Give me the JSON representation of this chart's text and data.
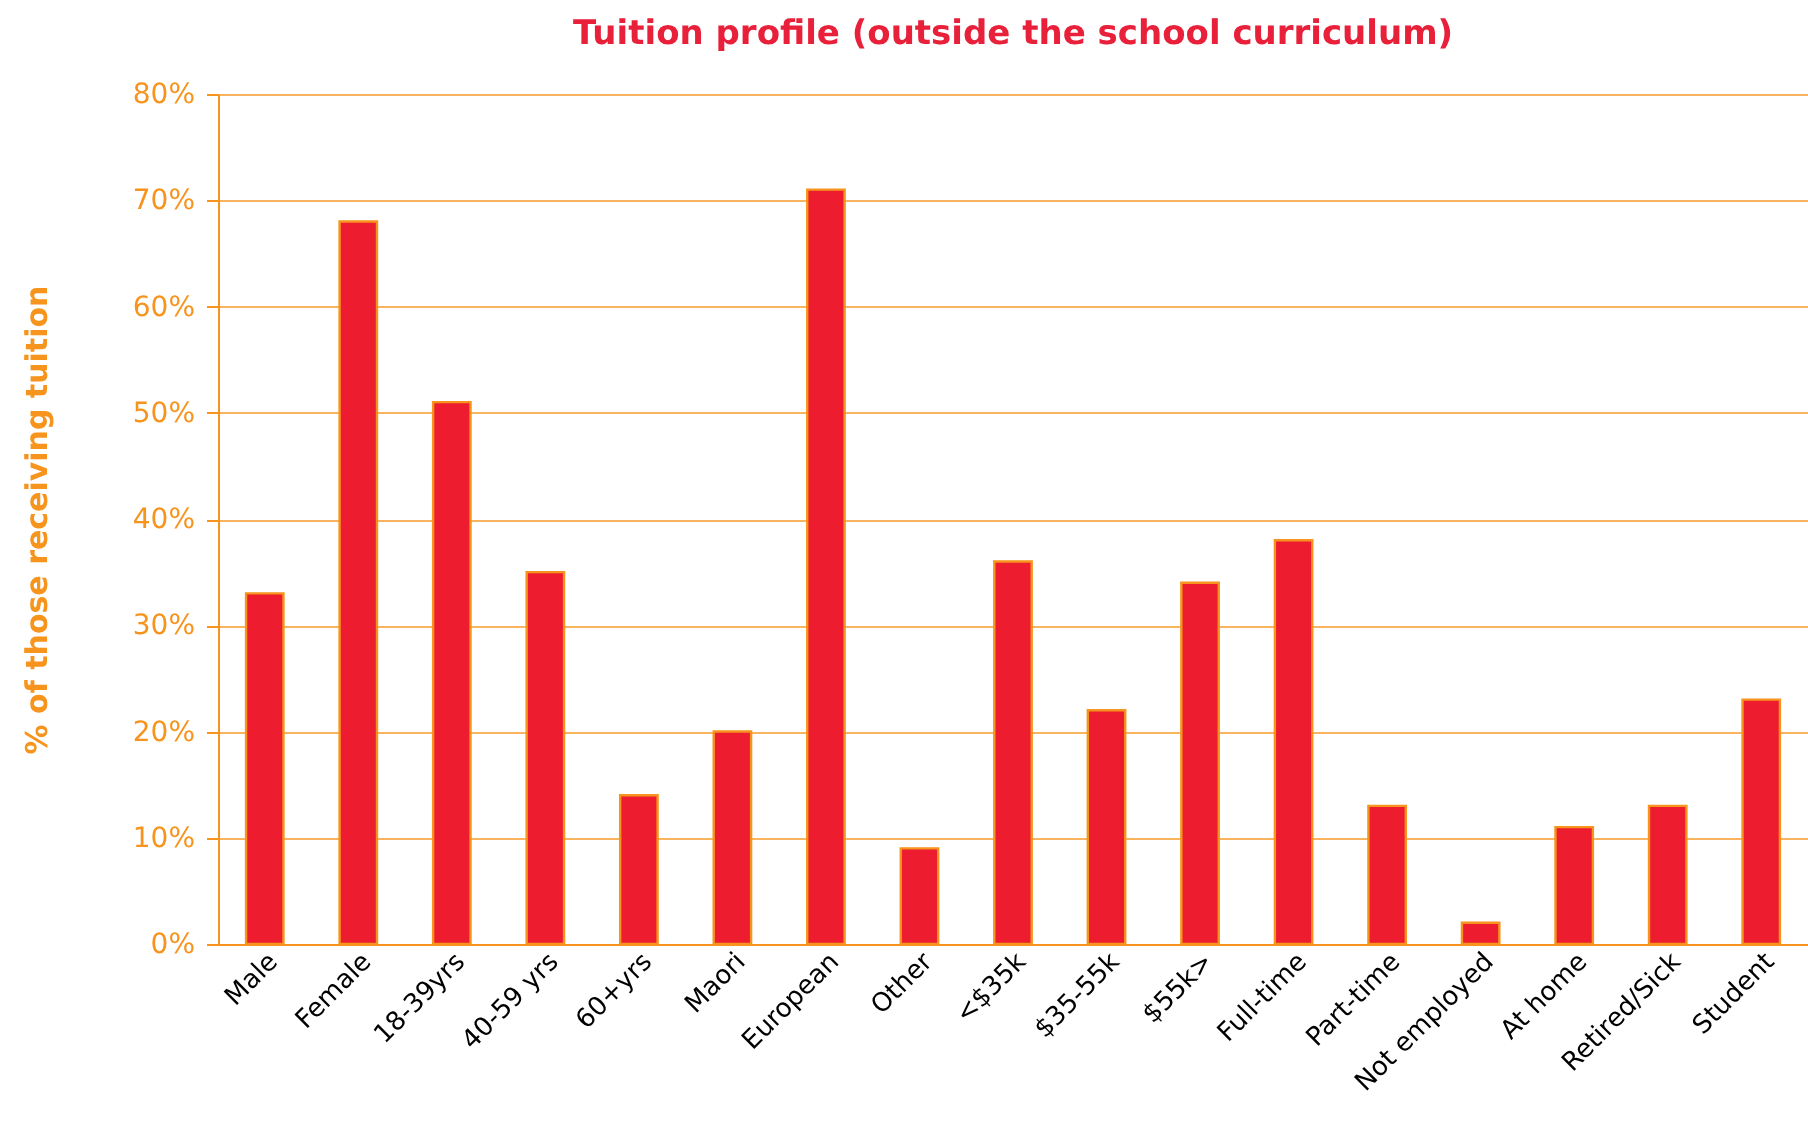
{
  "chart_data": {
    "type": "bar",
    "title": "Tuition profile (outside the school curriculum)",
    "ylabel": "% of those receiving tuition",
    "categories": [
      "Male",
      "Female",
      "18-39yrs",
      "40-59 yrs",
      "60+yrs",
      "Maori",
      "European",
      "Other",
      "<$35k",
      "$35-55k",
      "$55k>",
      "Full-time",
      "Part-time",
      "Not employed",
      "At home",
      "Retired/Sick",
      "Student"
    ],
    "values": [
      33,
      68,
      51,
      35,
      14,
      20,
      71,
      9,
      36,
      22,
      34,
      38,
      13,
      2,
      11,
      13,
      23
    ],
    "color": "#ed1c2e",
    "ylim": [
      0,
      80
    ],
    "yticks": [
      {
        "value": 0,
        "label": "0%"
      },
      {
        "value": 10,
        "label": "10%"
      },
      {
        "value": 20,
        "label": "20%"
      },
      {
        "value": 30,
        "label": "30%"
      },
      {
        "value": 40,
        "label": "40%"
      },
      {
        "value": 50,
        "label": "50%"
      },
      {
        "value": 60,
        "label": "60%"
      },
      {
        "value": 70,
        "label": "70%"
      },
      {
        "value": 80,
        "label": "80%"
      }
    ],
    "grid": "y"
  }
}
